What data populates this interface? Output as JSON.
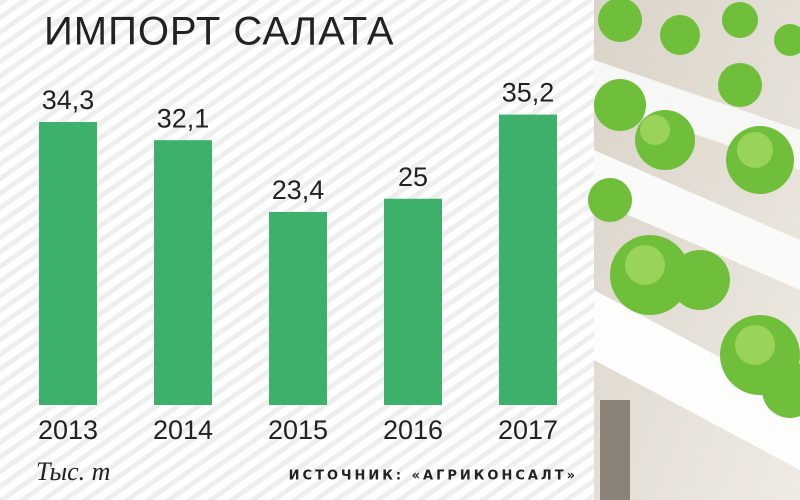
{
  "chart_data": {
    "type": "bar",
    "title": "ИМПОРТ САЛАТА",
    "unit_label": "Тыс. т",
    "source": "ИСТОЧНИК: «АГРИКОНСАЛТ»",
    "categories": [
      "2013",
      "2014",
      "2015",
      "2016",
      "2017"
    ],
    "values": [
      34.3,
      32.1,
      23.4,
      25,
      35.2
    ],
    "value_labels": [
      "34,3",
      "32,1",
      "23,4",
      "25",
      "35,2"
    ],
    "color": "#3db06b"
  }
}
